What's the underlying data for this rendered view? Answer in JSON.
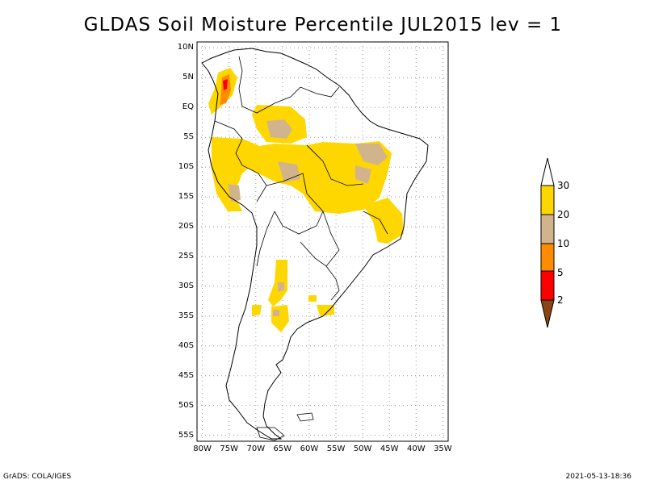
{
  "map": {
    "title": "GLDAS Soil Moisture Percentile JUL2015 lev = 1",
    "lat_labels": [
      "10N",
      "5N",
      "EQ",
      "5S",
      "10S",
      "15S",
      "20S",
      "25S",
      "30S",
      "35S",
      "40S",
      "45S",
      "50S",
      "55S"
    ],
    "lon_labels": [
      "80W",
      "75W",
      "70W",
      "65W",
      "60W",
      "55W",
      "50W",
      "45W",
      "40W",
      "35W"
    ],
    "lat_range": [
      -56,
      11
    ],
    "lon_range": [
      -81,
      -34
    ],
    "legend": {
      "labels": [
        "30",
        "20",
        "10",
        "5",
        "2"
      ],
      "colors": {
        "above_30": "#ffffff",
        "c20_30": "#ffd700",
        "c10_20": "#d2b48c",
        "c5_10": "#ff8c00",
        "c2_5": "#ff0000",
        "below_2": "#8b4513"
      }
    }
  },
  "footer": {
    "left": "GrADS: COLA/IGES",
    "right": "2021-05-13-18:36"
  }
}
